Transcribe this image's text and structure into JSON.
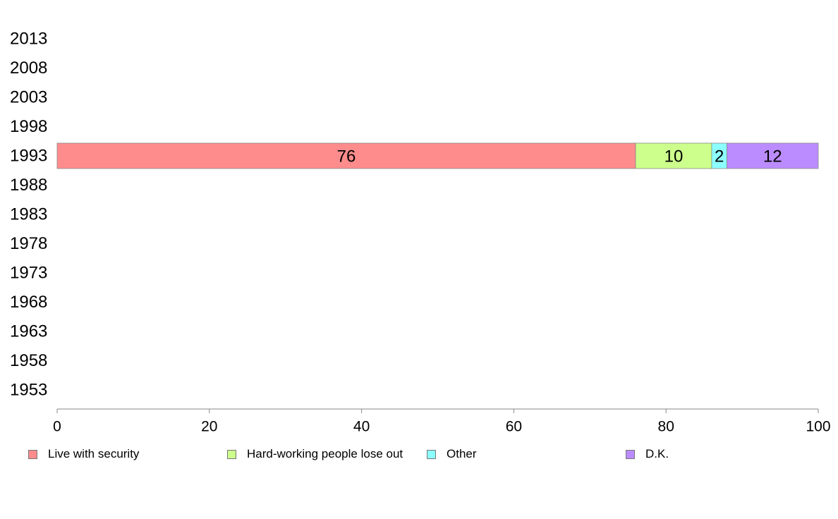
{
  "chart_data": {
    "type": "bar",
    "orientation": "horizontal",
    "stacked": true,
    "categories": [
      "2013",
      "2008",
      "2003",
      "1998",
      "1993",
      "1988",
      "1983",
      "1978",
      "1973",
      "1968",
      "1963",
      "1958",
      "1953"
    ],
    "series": [
      {
        "name": "Live with security",
        "short_label": "Live with security",
        "color": "#ff8c8c",
        "values": [
          null,
          null,
          null,
          null,
          76,
          null,
          null,
          null,
          null,
          null,
          null,
          null,
          null
        ]
      },
      {
        "name": "Hard-working people lose out",
        "short_label": "Hard-w..",
        "color": "#ccff8c",
        "values": [
          null,
          null,
          null,
          null,
          10,
          null,
          null,
          null,
          null,
          null,
          null,
          null,
          null
        ]
      },
      {
        "name": "Other",
        "short_label": "Ot..",
        "color": "#8cffff",
        "values": [
          null,
          null,
          null,
          null,
          2,
          null,
          null,
          null,
          null,
          null,
          null,
          null,
          null
        ]
      },
      {
        "name": "D.K.",
        "short_label": "D.K.",
        "color": "#bb8cff",
        "values": [
          null,
          null,
          null,
          null,
          12,
          null,
          null,
          null,
          null,
          null,
          null,
          null,
          null
        ]
      }
    ],
    "xlim": [
      0,
      100
    ],
    "xticks": [
      0,
      20,
      40,
      60,
      80,
      100
    ],
    "grid": false,
    "legend_position": "bottom"
  }
}
